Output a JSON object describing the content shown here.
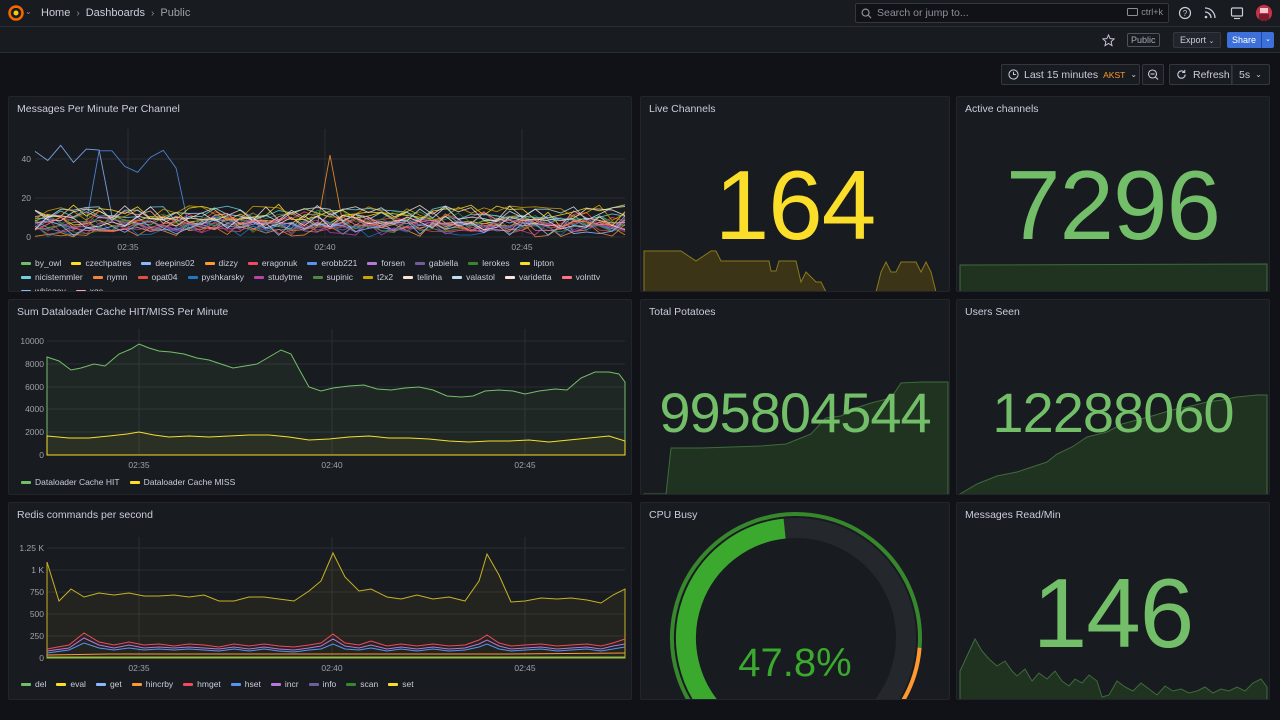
{
  "topbar": {
    "breadcrumb": [
      "Home",
      "Dashboards",
      "Public"
    ],
    "search_placeholder": "Search or jump to...",
    "search_shortcut": "ctrl+k"
  },
  "subbar": {
    "public_tag": "Public",
    "export_label": "Export",
    "share_label": "Share"
  },
  "controls": {
    "time_range": "Last 15 minutes",
    "timezone": "AKST",
    "refresh_label": "Refresh",
    "refresh_interval": "5s"
  },
  "colors": {
    "yellow": "#fade2a",
    "green": "#73bf69",
    "dark_green": "#37872d",
    "red": "#f2495c",
    "orange": "#ff9830"
  },
  "panels": {
    "messages_per_minute": {
      "title": "Messages Per Minute Per Channel",
      "y_ticks": [
        "40",
        "20",
        "0"
      ],
      "x_ticks": [
        "02:35",
        "02:40",
        "02:45"
      ],
      "legend": [
        {
          "name": "by_owl",
          "color": "#73bf69"
        },
        {
          "name": "czechpatres",
          "color": "#fade2a"
        },
        {
          "name": "deepins02",
          "color": "#8ab8ff"
        },
        {
          "name": "dizzy",
          "color": "#ff9830"
        },
        {
          "name": "eragonuk",
          "color": "#f2495c"
        },
        {
          "name": "erobb221",
          "color": "#5794f2"
        },
        {
          "name": "forsen",
          "color": "#b877d9"
        },
        {
          "name": "gabiella",
          "color": "#705da0"
        },
        {
          "name": "lerokes",
          "color": "#37872d"
        },
        {
          "name": "lipton",
          "color": "#fade2a"
        },
        {
          "name": "nicistemmler",
          "color": "#6ed0e0"
        },
        {
          "name": "nymn",
          "color": "#ef843c"
        },
        {
          "name": "opat04",
          "color": "#e24d42"
        },
        {
          "name": "pyshkarsky",
          "color": "#1f78c1"
        },
        {
          "name": "studytme",
          "color": "#ba43a9"
        },
        {
          "name": "supinic",
          "color": "#508642"
        },
        {
          "name": "t2x2",
          "color": "#cca300"
        },
        {
          "name": "telinha",
          "color": "#f9e2d2"
        },
        {
          "name": "valastol",
          "color": "#badff4"
        },
        {
          "name": "varidetta",
          "color": "#fce2de"
        },
        {
          "name": "volnttv",
          "color": "#ff7383"
        },
        {
          "name": "whisqey",
          "color": "#8ab8ff"
        },
        {
          "name": "xqc",
          "color": "#ffa6b0"
        }
      ]
    },
    "live_channels": {
      "title": "Live Channels",
      "value": "164"
    },
    "active_channels": {
      "title": "Active channels",
      "value": "7296"
    },
    "dataloader": {
      "title": "Sum Dataloader Cache HIT/MISS Per Minute",
      "y_ticks": [
        "10000",
        "8000",
        "6000",
        "4000",
        "2000",
        "0"
      ],
      "x_ticks": [
        "02:35",
        "02:40",
        "02:45"
      ],
      "legend": [
        {
          "name": "Dataloader Cache HIT",
          "color": "#73bf69"
        },
        {
          "name": "Dataloader Cache MISS",
          "color": "#fade2a"
        }
      ]
    },
    "total_potatoes": {
      "title": "Total Potatoes",
      "value": "995804544"
    },
    "users_seen": {
      "title": "Users Seen",
      "value": "12288060"
    },
    "redis": {
      "title": "Redis commands per second",
      "y_ticks": [
        "1.25 K",
        "1 K",
        "750",
        "500",
        "250",
        "0"
      ],
      "x_ticks": [
        "02:35",
        "02:40",
        "02:45"
      ],
      "legend": [
        {
          "name": "del",
          "color": "#73bf69"
        },
        {
          "name": "eval",
          "color": "#fade2a"
        },
        {
          "name": "get",
          "color": "#8ab8ff"
        },
        {
          "name": "hincrby",
          "color": "#ff9830"
        },
        {
          "name": "hmget",
          "color": "#f2495c"
        },
        {
          "name": "hset",
          "color": "#5794f2"
        },
        {
          "name": "incr",
          "color": "#b877d9"
        },
        {
          "name": "info",
          "color": "#705da0"
        },
        {
          "name": "scan",
          "color": "#37872d"
        },
        {
          "name": "set",
          "color": "#fade2a"
        }
      ]
    },
    "cpu_busy": {
      "title": "CPU Busy",
      "value": "47.8%",
      "fraction": 0.478
    },
    "messages_read": {
      "title": "Messages Read/Min",
      "value": "146"
    }
  }
}
